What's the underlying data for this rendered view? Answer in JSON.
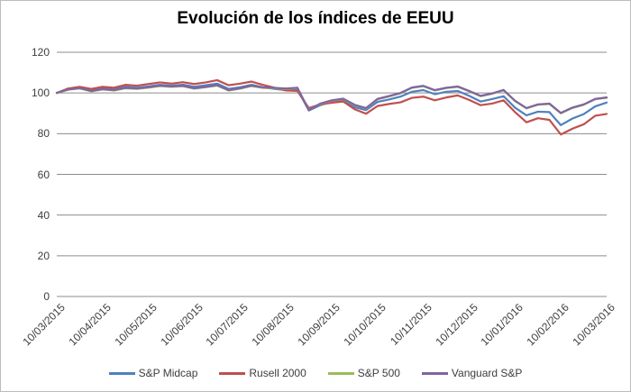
{
  "figure": {
    "border_color": "#bdbdbd",
    "background": "#ffffff",
    "text_color": "#3d3d3d",
    "gridline_color": "#8c8c8c"
  },
  "chart_data": {
    "type": "line",
    "title": "Evolución de los índices de EEUU",
    "xlabel": "",
    "ylabel": "",
    "grid": true,
    "legend_position": "bottom",
    "ylim": [
      0,
      120
    ],
    "yticks": [
      120,
      100,
      80,
      60,
      40,
      20,
      0
    ],
    "xticklabels": [
      "10/03/2015",
      "10/04/2015",
      "10/05/2015",
      "10/06/2015",
      "10/07/2015",
      "10/08/2015",
      "10/09/2015",
      "10/10/2015",
      "10/11/2015",
      "10/12/2015",
      "10/01/2016",
      "10/02/2016",
      "10/03/2016"
    ],
    "x_unit": "months since 10/03/2015, samples evenly spaced",
    "x_start": 0,
    "x_step": 0.25,
    "x_end": 12,
    "series": [
      {
        "name": "S&P Midcap",
        "color": "#4F81BD",
        "values": [
          100.0,
          101.8,
          102.5,
          101.2,
          102.2,
          101.8,
          103.0,
          102.6,
          103.2,
          104.0,
          103.6,
          104.1,
          103.0,
          103.8,
          104.6,
          102.0,
          102.8,
          104.0,
          102.8,
          102.0,
          101.4,
          101.8,
          91.4,
          94.0,
          95.6,
          96.2,
          93.0,
          91.6,
          95.6,
          96.8,
          98.2,
          100.6,
          101.4,
          99.4,
          100.6,
          101.0,
          98.6,
          95.8,
          97.0,
          98.4,
          92.8,
          89.0,
          90.8,
          90.6,
          84.2,
          87.4,
          89.6,
          93.4,
          95.3
        ]
      },
      {
        "name": "Rusell 2000",
        "color": "#C0504D",
        "values": [
          100.0,
          102.2,
          103.0,
          102.0,
          103.0,
          102.6,
          104.0,
          103.6,
          104.4,
          105.2,
          104.6,
          105.3,
          104.4,
          105.2,
          106.3,
          103.8,
          104.6,
          105.6,
          104.0,
          102.6,
          101.2,
          101.0,
          92.6,
          94.4,
          95.2,
          95.8,
          92.0,
          89.8,
          93.6,
          94.6,
          95.4,
          97.6,
          98.2,
          96.4,
          97.8,
          98.8,
          96.6,
          94.0,
          94.8,
          96.4,
          90.6,
          85.6,
          87.6,
          86.8,
          79.6,
          82.4,
          84.6,
          88.8,
          89.7
        ]
      },
      {
        "name": "S&P 500",
        "color": "#9BBB59",
        "values": [
          100.0,
          101.6,
          102.2,
          100.8,
          101.7,
          101.2,
          102.3,
          102.0,
          102.6,
          103.4,
          103.0,
          103.3,
          102.1,
          102.8,
          103.6,
          101.2,
          102.1,
          103.4,
          102.5,
          102.3,
          102.0,
          102.4,
          91.8,
          94.6,
          96.2,
          97.0,
          94.0,
          92.4,
          96.9,
          98.3,
          99.8,
          102.5,
          103.3,
          101.2,
          102.4,
          103.0,
          100.8,
          98.4,
          99.6,
          101.3,
          96.0,
          92.4,
          94.2,
          94.6,
          90.0,
          92.6,
          94.2,
          96.9,
          97.6
        ]
      },
      {
        "name": "Vanguard S&P",
        "color": "#8064A2",
        "values": [
          100.1,
          101.7,
          102.4,
          101.0,
          101.9,
          101.4,
          102.5,
          102.2,
          102.8,
          103.6,
          103.2,
          103.5,
          102.3,
          103.0,
          103.8,
          101.4,
          102.3,
          103.6,
          102.7,
          102.5,
          102.2,
          102.6,
          91.6,
          94.8,
          96.4,
          97.2,
          94.2,
          92.6,
          97.1,
          98.5,
          100.0,
          102.7,
          103.5,
          101.4,
          102.6,
          103.2,
          101.0,
          98.6,
          99.8,
          101.5,
          96.2,
          92.6,
          94.4,
          94.8,
          90.2,
          92.8,
          94.4,
          97.1,
          97.8
        ]
      }
    ]
  }
}
